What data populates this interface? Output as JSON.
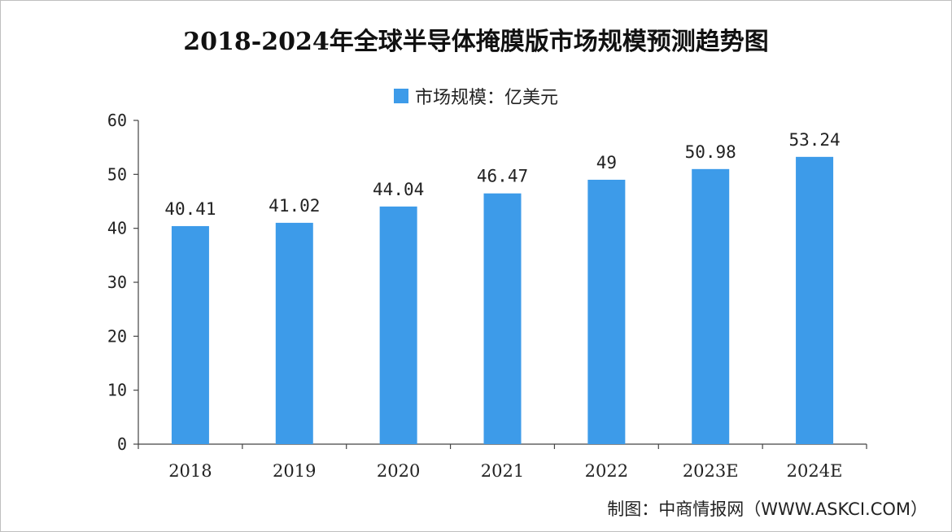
{
  "chart_data": {
    "type": "bar",
    "title": "2018-2024年全球半导体掩膜版市场规模预测趋势图",
    "categories": [
      "2018",
      "2019",
      "2020",
      "2021",
      "2022",
      "2023E",
      "2024E"
    ],
    "series": [
      {
        "name": "市场规模：亿美元",
        "values": [
          40.41,
          41.02,
          44.04,
          46.47,
          49,
          50.98,
          53.24
        ],
        "labels": [
          "40.41",
          "41.02",
          "44.04",
          "46.47",
          "49",
          "50.98",
          "53.24"
        ],
        "color": "#3d9be9"
      }
    ],
    "ylim": [
      0,
      60
    ],
    "yticks": [
      0,
      10,
      20,
      30,
      40,
      50,
      60
    ],
    "grid": false,
    "legend_position": "top-center"
  },
  "source": "制图：中商情报网（WWW.ASKCI.COM）"
}
